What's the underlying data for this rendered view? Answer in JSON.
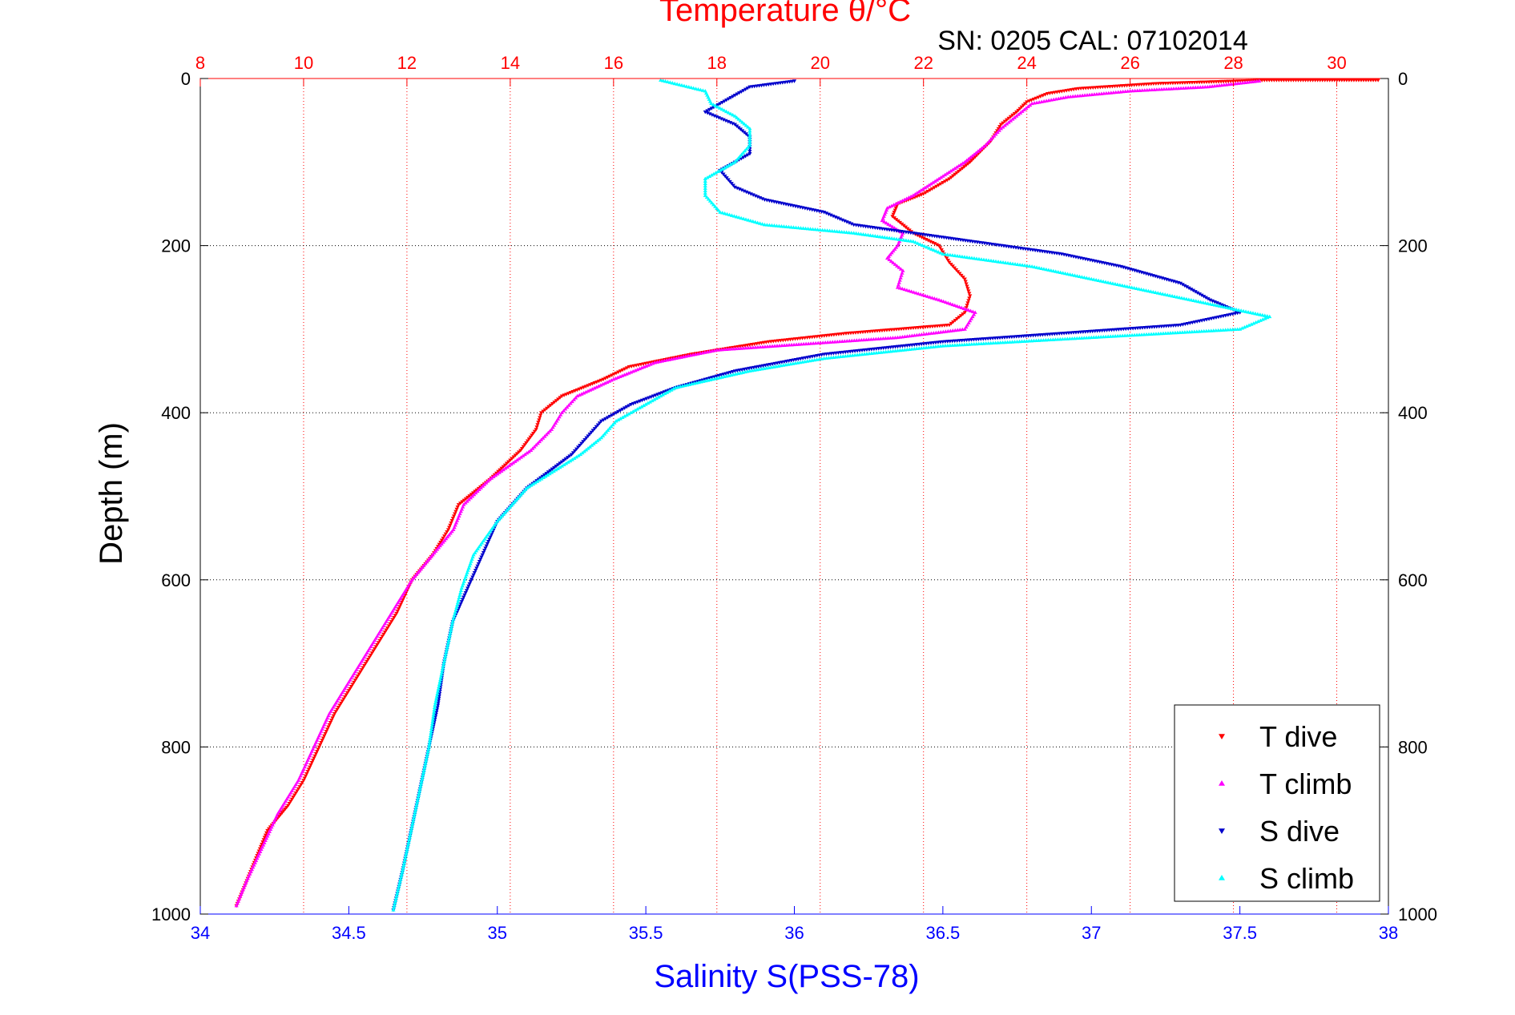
{
  "chart_data": {
    "type": "scatter",
    "title": "Temperature θ/°C",
    "subtitle": "SN: 0205  CAL: 07102014",
    "xlabel_bottom": "Salinity S(PSS-78)",
    "xlabel_top": "",
    "ylabel": "Depth (m)",
    "x_bottom_lim": [
      34,
      38
    ],
    "x_top_lim": [
      8,
      31
    ],
    "ylim": [
      0,
      1000
    ],
    "y_reversed": true,
    "x_bottom_ticks": [
      "34",
      "34.5",
      "35",
      "35.5",
      "36",
      "36.5",
      "37",
      "37.5",
      "38"
    ],
    "x_top_ticks": [
      "8",
      "10",
      "12",
      "14",
      "16",
      "18",
      "20",
      "22",
      "24",
      "26",
      "28",
      "30"
    ],
    "y_ticks": [
      "0",
      "200",
      "400",
      "600",
      "800",
      "1000"
    ],
    "grid": true,
    "legend_position": "bottom-right",
    "colors": {
      "temperature_axis": "#ff0000",
      "salinity_axis": "#0000ff",
      "t_dive": "#ff0000",
      "t_climb": "#ff00ff",
      "s_dive": "#0000cc",
      "s_climb": "#00ffff"
    },
    "series": [
      {
        "name": "T dive",
        "axis": "top",
        "marker": "triangle-down",
        "points": [
          [
            30.8,
            2
          ],
          [
            28.6,
            2
          ],
          [
            26.5,
            6
          ],
          [
            25.0,
            12
          ],
          [
            24.4,
            18
          ],
          [
            24.0,
            28
          ],
          [
            23.8,
            40
          ],
          [
            23.5,
            55
          ],
          [
            23.3,
            75
          ],
          [
            22.9,
            100
          ],
          [
            22.5,
            120
          ],
          [
            22.0,
            138
          ],
          [
            21.5,
            150
          ],
          [
            21.4,
            165
          ],
          [
            21.8,
            185
          ],
          [
            22.3,
            200
          ],
          [
            22.5,
            220
          ],
          [
            22.8,
            240
          ],
          [
            22.9,
            260
          ],
          [
            22.8,
            280
          ],
          [
            22.5,
            295
          ],
          [
            20.5,
            305
          ],
          [
            19.0,
            315
          ],
          [
            17.5,
            330
          ],
          [
            16.3,
            345
          ],
          [
            15.8,
            360
          ],
          [
            15.0,
            380
          ],
          [
            14.6,
            400
          ],
          [
            14.5,
            420
          ],
          [
            14.2,
            445
          ],
          [
            13.6,
            480
          ],
          [
            13.0,
            510
          ],
          [
            12.8,
            540
          ],
          [
            12.5,
            570
          ],
          [
            12.1,
            600
          ],
          [
            11.8,
            640
          ],
          [
            11.4,
            680
          ],
          [
            11.0,
            720
          ],
          [
            10.6,
            760
          ],
          [
            10.3,
            800
          ],
          [
            10.0,
            840
          ],
          [
            9.7,
            870
          ],
          [
            9.3,
            900
          ],
          [
            9.1,
            930
          ],
          [
            8.9,
            960
          ],
          [
            8.7,
            990
          ]
        ]
      },
      {
        "name": "T climb",
        "axis": "top",
        "marker": "triangle-up",
        "points": [
          [
            28.5,
            3
          ],
          [
            27.5,
            10
          ],
          [
            26.0,
            15
          ],
          [
            24.8,
            22
          ],
          [
            24.1,
            30
          ],
          [
            23.8,
            45
          ],
          [
            23.5,
            60
          ],
          [
            23.2,
            80
          ],
          [
            22.8,
            100
          ],
          [
            22.3,
            120
          ],
          [
            21.8,
            140
          ],
          [
            21.3,
            155
          ],
          [
            21.2,
            170
          ],
          [
            21.6,
            185
          ],
          [
            21.5,
            200
          ],
          [
            21.3,
            215
          ],
          [
            21.6,
            230
          ],
          [
            21.5,
            250
          ],
          [
            22.3,
            265
          ],
          [
            23.0,
            280
          ],
          [
            22.8,
            300
          ],
          [
            21.5,
            310
          ],
          [
            18.0,
            325
          ],
          [
            16.8,
            340
          ],
          [
            16.0,
            360
          ],
          [
            15.3,
            380
          ],
          [
            15.0,
            400
          ],
          [
            14.8,
            420
          ],
          [
            14.4,
            445
          ],
          [
            13.6,
            480
          ],
          [
            13.1,
            510
          ],
          [
            12.9,
            540
          ],
          [
            12.5,
            570
          ],
          [
            12.1,
            600
          ],
          [
            11.7,
            640
          ],
          [
            11.3,
            680
          ],
          [
            10.9,
            720
          ],
          [
            10.5,
            760
          ],
          [
            10.2,
            800
          ],
          [
            9.9,
            840
          ],
          [
            9.5,
            880
          ],
          [
            9.2,
            920
          ],
          [
            8.9,
            960
          ],
          [
            8.7,
            990
          ]
        ]
      },
      {
        "name": "S dive",
        "axis": "bottom",
        "marker": "triangle-down",
        "points": [
          [
            36.0,
            3
          ],
          [
            35.85,
            10
          ],
          [
            35.8,
            20
          ],
          [
            35.75,
            30
          ],
          [
            35.7,
            40
          ],
          [
            35.8,
            55
          ],
          [
            35.85,
            70
          ],
          [
            35.85,
            90
          ],
          [
            35.75,
            110
          ],
          [
            35.8,
            130
          ],
          [
            35.9,
            145
          ],
          [
            36.1,
            160
          ],
          [
            36.2,
            175
          ],
          [
            36.6,
            195
          ],
          [
            36.9,
            210
          ],
          [
            37.1,
            225
          ],
          [
            37.3,
            245
          ],
          [
            37.4,
            265
          ],
          [
            37.5,
            280
          ],
          [
            37.3,
            295
          ],
          [
            36.9,
            305
          ],
          [
            36.5,
            315
          ],
          [
            36.1,
            330
          ],
          [
            35.8,
            350
          ],
          [
            35.6,
            370
          ],
          [
            35.45,
            390
          ],
          [
            35.35,
            410
          ],
          [
            35.3,
            430
          ],
          [
            35.25,
            450
          ],
          [
            35.1,
            490
          ],
          [
            35.0,
            530
          ],
          [
            34.95,
            570
          ],
          [
            34.9,
            610
          ],
          [
            34.85,
            650
          ],
          [
            34.82,
            700
          ],
          [
            34.8,
            750
          ],
          [
            34.77,
            800
          ],
          [
            34.74,
            850
          ],
          [
            34.71,
            900
          ],
          [
            34.68,
            950
          ],
          [
            34.65,
            995
          ]
        ]
      },
      {
        "name": "S climb",
        "axis": "bottom",
        "marker": "triangle-up",
        "points": [
          [
            35.55,
            2
          ],
          [
            35.7,
            15
          ],
          [
            35.72,
            30
          ],
          [
            35.8,
            45
          ],
          [
            35.85,
            60
          ],
          [
            35.85,
            80
          ],
          [
            35.8,
            100
          ],
          [
            35.7,
            120
          ],
          [
            35.7,
            140
          ],
          [
            35.75,
            160
          ],
          [
            35.9,
            175
          ],
          [
            36.2,
            185
          ],
          [
            36.4,
            195
          ],
          [
            36.5,
            210
          ],
          [
            36.8,
            225
          ],
          [
            37.0,
            240
          ],
          [
            37.2,
            255
          ],
          [
            37.4,
            270
          ],
          [
            37.6,
            285
          ],
          [
            37.5,
            300
          ],
          [
            37.0,
            310
          ],
          [
            36.5,
            320
          ],
          [
            36.1,
            335
          ],
          [
            35.85,
            350
          ],
          [
            35.6,
            370
          ],
          [
            35.5,
            390
          ],
          [
            35.4,
            410
          ],
          [
            35.35,
            430
          ],
          [
            35.28,
            450
          ],
          [
            35.1,
            490
          ],
          [
            35.0,
            530
          ],
          [
            34.92,
            570
          ],
          [
            34.88,
            610
          ],
          [
            34.85,
            650
          ],
          [
            34.82,
            700
          ],
          [
            34.79,
            750
          ],
          [
            34.77,
            800
          ],
          [
            34.74,
            850
          ],
          [
            34.71,
            900
          ],
          [
            34.68,
            950
          ],
          [
            34.65,
            995
          ]
        ]
      }
    ]
  }
}
